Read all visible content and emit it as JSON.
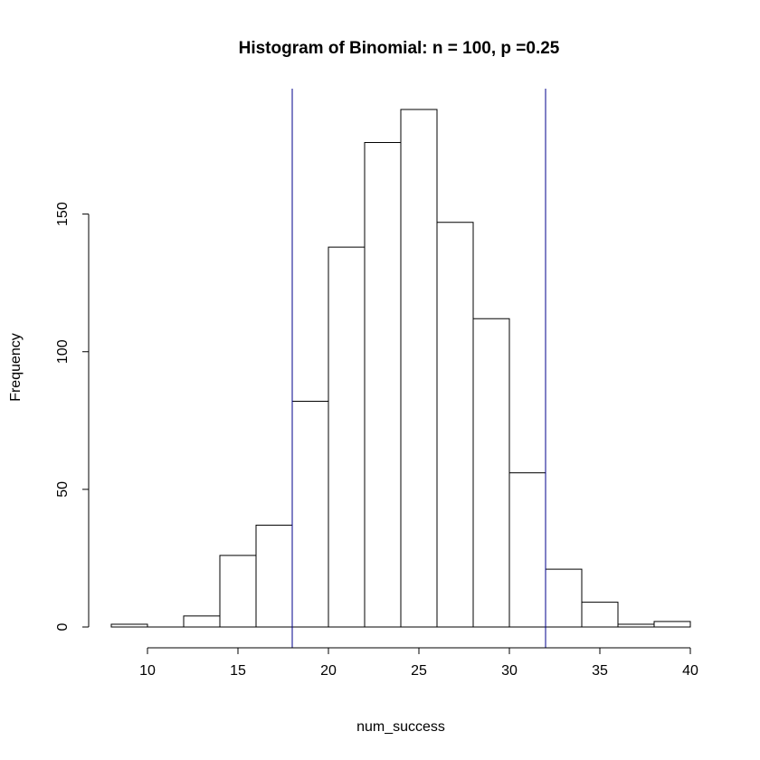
{
  "chart_data": {
    "type": "bar",
    "title": "Histogram of Binomial: n = 100, p =0.25",
    "xlabel": "num_success",
    "ylabel": "Frequency",
    "bin_edges": [
      8,
      10,
      12,
      14,
      16,
      18,
      20,
      22,
      24,
      26,
      28,
      30,
      32,
      34,
      36,
      38,
      40
    ],
    "values": [
      1,
      0,
      4,
      26,
      37,
      82,
      138,
      176,
      188,
      147,
      112,
      56,
      21,
      9,
      1,
      2
    ],
    "xlim": [
      8,
      40
    ],
    "ylim": [
      0,
      188
    ],
    "x_ticks": [
      10,
      15,
      20,
      25,
      30,
      35,
      40
    ],
    "y_ticks": [
      0,
      50,
      100,
      150
    ],
    "vertical_lines": [
      18,
      32
    ],
    "vertical_line_color": "#00008b",
    "bar_fill": "#ffffff",
    "bar_stroke": "#000000",
    "grid": false,
    "legend": "none"
  }
}
